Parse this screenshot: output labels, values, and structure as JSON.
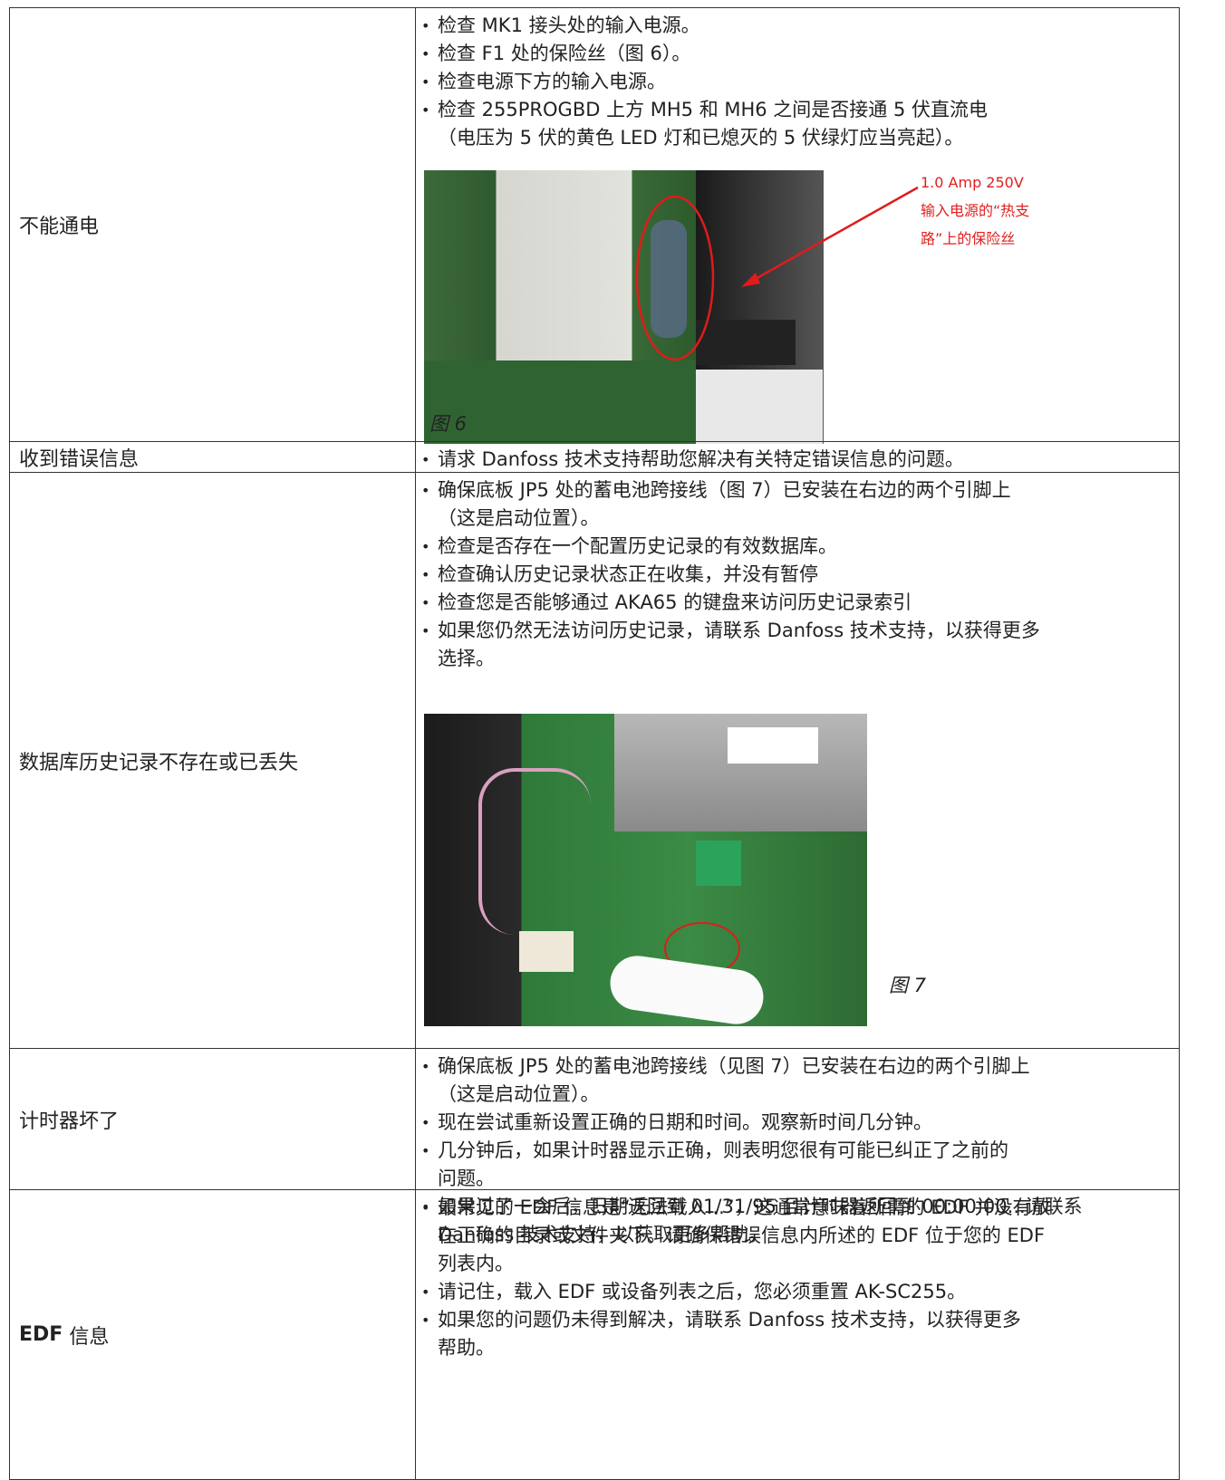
{
  "table": {
    "rows": [
      {
        "issue": [
          "不能通电"
        ],
        "actions": [
          [
            "检查 MK1 接头处的输入电源。"
          ],
          [
            "检查 F1 处的保险丝（图 6）。"
          ],
          [
            "检查电源下方的输入电源。"
          ],
          [
            "检查 255PROGBD 上方 MH5 和 MH6 之间是否接通 5 伏直流电",
            "（电压为 5 伏的黄色 LED 灯和已熄灭的 5 伏绿灯应当亮起）。"
          ]
        ],
        "figure": {
          "caption": "图 6",
          "annotation": [
            "1.0 Amp 250V",
            "输入电源的“热支",
            "路”上的保险丝"
          ]
        }
      },
      {
        "issue": [
          "收到错误信息"
        ],
        "actions": [
          [
            "请求 Danfoss 技术支持帮助您解决有关特定错误信息的问题。"
          ]
        ]
      },
      {
        "issue": [
          "数据库历史记录不存在或已丢失"
        ],
        "actions": [
          [
            "确保底板 JP5 处的蓄电池跨接线（图 7）已安装在右边的两个引脚上",
            "（这是启动位置）。"
          ],
          [
            "检查是否存在一个配置历史记录的有效数据库。"
          ],
          [
            "检查确认历史记录状态正在收集，并没有暂停"
          ],
          [
            "检查您是否能够通过 AKA65 的键盘来访问历史记录索引"
          ],
          [
            "如果您仍然无法访问历史记录，请联系 Danfoss 技术支持，以获得更多",
            "选择。"
          ]
        ],
        "figure": {
          "caption": "图 7"
        }
      },
      {
        "issue": [
          "计时器坏了"
        ],
        "actions": [
          [
            "确保底板 JP5 处的蓄电池跨接线（见图 7）已安装在右边的两个引脚上",
            "（这是启动位置）。"
          ],
          [
            "现在尝试重新设置正确的日期和时间。观察新时间几分钟。"
          ],
          [
            "几分钟后，如果计时器显示正确，则表明您很有可能已纠正了之前的",
            "问题。"
          ],
          [
            "如果过了一会后，日期返回到 01/31/95 且计时器返回到 00:00:00...请联系",
            "Danfoss 技术支持，以获取更多帮助。"
          ]
        ]
      },
      {
        "issue": [
          "EDF",
          " 信息"
        ],
        "actions": [
          [
            "最常见的 EDF 信息是“无法载入...”，这通常意味着所需的 EDF 并没有放",
            "在正确的目录或文件夹下。请确保错误信息内所述的 EDF 位于您的 EDF",
            "列表内。"
          ],
          [
            "请记住，载入 EDF 或设备列表之后，您必须重置 AK-SC255。"
          ],
          [
            "如果您的问题仍未得到解决，请联系 Danfoss 技术支持，以获得更多",
            "帮助。"
          ]
        ]
      }
    ]
  }
}
